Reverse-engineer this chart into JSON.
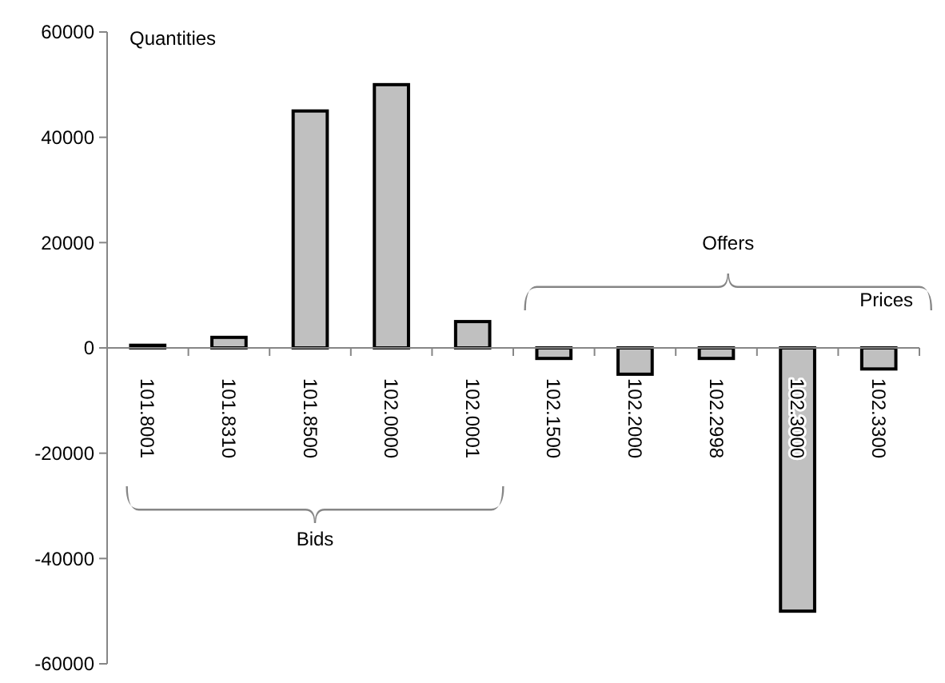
{
  "chart_data": {
    "type": "bar",
    "ylabel": "Quantities",
    "xlabel": "Prices",
    "categories": [
      "101.8001",
      "101.8310",
      "101.8500",
      "102.0000",
      "102.0001",
      "102.1500",
      "102.2000",
      "102.2998",
      "102.3000",
      "102.3300"
    ],
    "values": [
      500,
      2000,
      45000,
      50000,
      5000,
      -2000,
      -5000,
      -2000,
      -50000,
      -4000
    ],
    "color": "#c0c0c0",
    "ylim": [
      -60000,
      60000
    ],
    "yticks": [
      -60000,
      -40000,
      -20000,
      0,
      20000,
      40000,
      60000
    ],
    "annotations": [
      "Bids",
      "Offers"
    ],
    "grid": false
  }
}
